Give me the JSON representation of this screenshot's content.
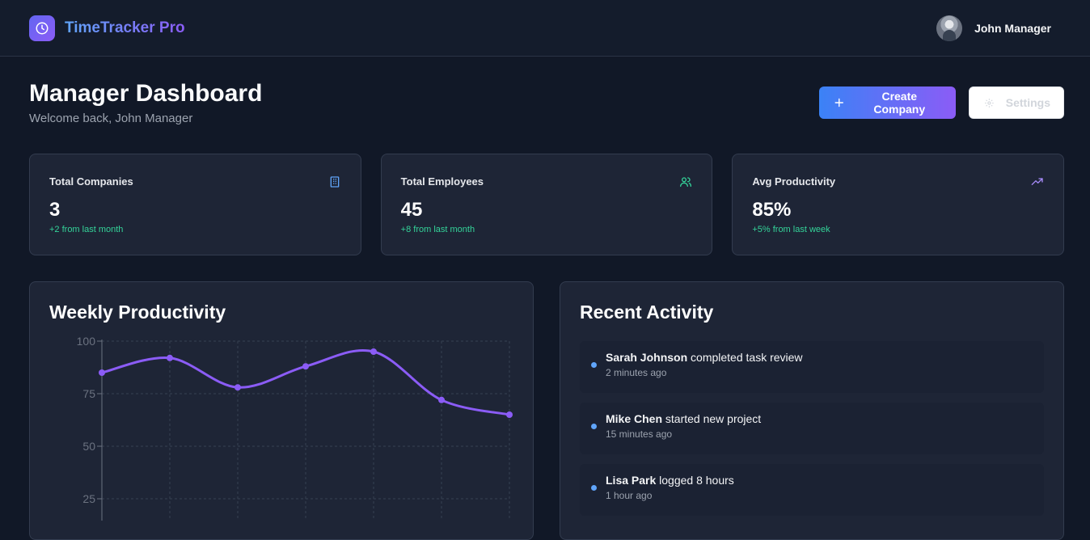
{
  "app": {
    "name": "TimeTracker Pro"
  },
  "user": {
    "name": "John Manager"
  },
  "header": {
    "title": "Manager Dashboard",
    "welcome": "Welcome back, John Manager",
    "create_label": "Create Company",
    "settings_label": "Settings"
  },
  "stats": [
    {
      "label": "Total Companies",
      "value": "3",
      "change": "+2 from last month",
      "icon": "building-icon"
    },
    {
      "label": "Total Employees",
      "value": "45",
      "change": "+8 from last month",
      "icon": "users-icon"
    },
    {
      "label": "Avg Productivity",
      "value": "85%",
      "change": "+5% from last week",
      "icon": "trending-up-icon"
    }
  ],
  "chart_panel": {
    "title": "Weekly Productivity"
  },
  "activity_panel": {
    "title": "Recent Activity",
    "items": [
      {
        "name": "Sarah Johnson",
        "action": " completed task review",
        "time": "2 minutes ago"
      },
      {
        "name": "Mike Chen",
        "action": " started new project",
        "time": "15 minutes ago"
      },
      {
        "name": "Lisa Park",
        "action": " logged 8 hours",
        "time": "1 hour ago"
      }
    ]
  },
  "colors": {
    "accent": "#8b5cf6",
    "positive": "#34d399",
    "dot": "#60a5fa"
  },
  "chart_data": {
    "type": "line",
    "title": "Weekly Productivity",
    "x": [
      1,
      2,
      3,
      4,
      5,
      6,
      7
    ],
    "values": [
      85,
      92,
      78,
      88,
      95,
      72,
      65
    ],
    "yticks": [
      25,
      50,
      75,
      100
    ],
    "ylim": [
      0,
      100
    ],
    "grid": true
  }
}
